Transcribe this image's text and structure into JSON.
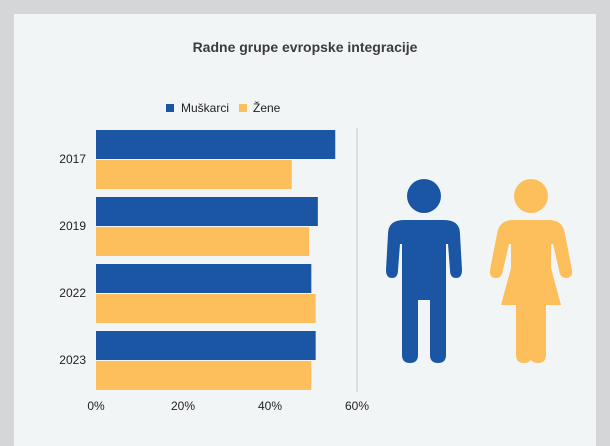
{
  "chart_data": {
    "type": "bar",
    "orientation": "horizontal",
    "title": "Radne grupe evropske integracije",
    "categories": [
      "2017",
      "2019",
      "2022",
      "2023"
    ],
    "series": [
      {
        "name": "Muškarci",
        "color": "#1a56a4",
        "values": [
          55,
          51,
          49.5,
          50.5
        ]
      },
      {
        "name": "Žene",
        "color": "#fdbf5c",
        "values": [
          45,
          49,
          50.5,
          49.5
        ]
      }
    ],
    "xlim": [
      0,
      60
    ],
    "xticks": [
      0,
      20,
      40,
      60
    ],
    "xtick_labels": [
      "0%",
      "20%",
      "40%",
      "60%"
    ],
    "legend_position": "top",
    "grid": false
  },
  "figures": {
    "men_color": "#1a56a4",
    "women_color": "#fdbf5c"
  }
}
